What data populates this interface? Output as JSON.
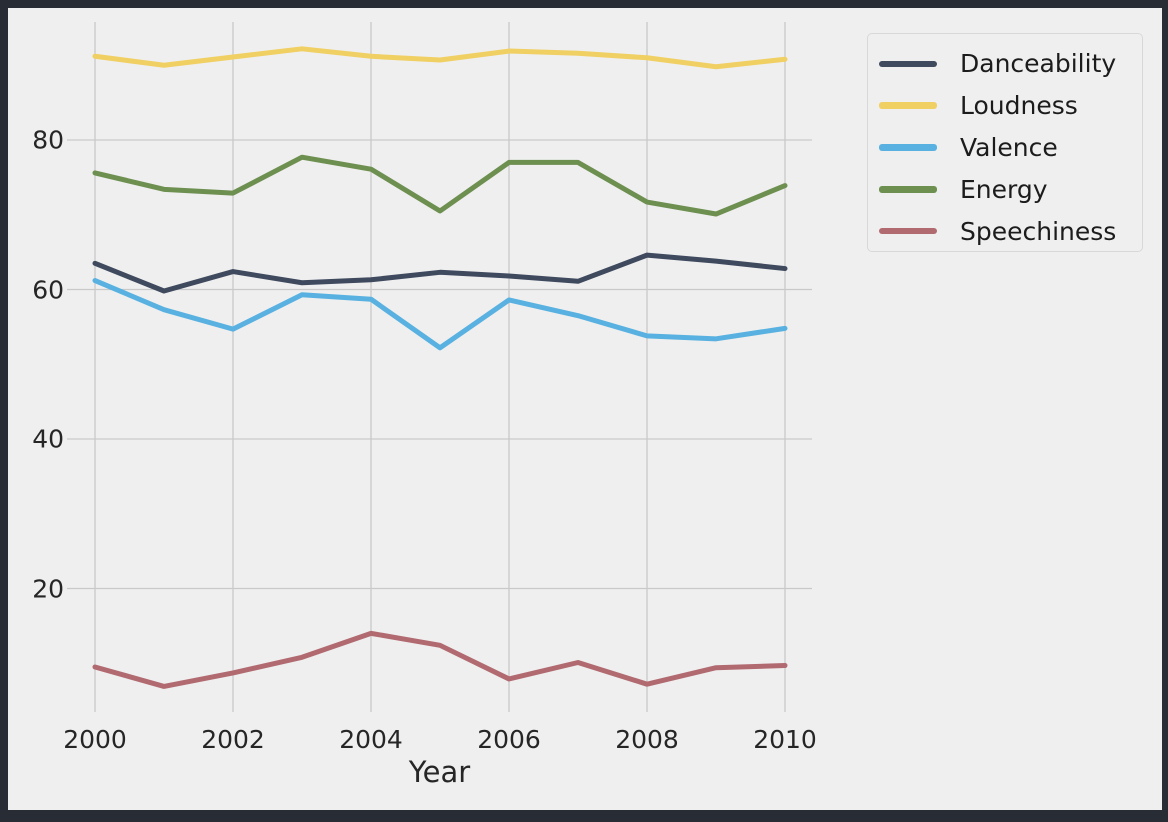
{
  "chart_data": {
    "type": "line",
    "title": "",
    "xlabel": "Year",
    "ylabel": "",
    "x": [
      2000,
      2001,
      2002,
      2003,
      2004,
      2005,
      2006,
      2007,
      2008,
      2009,
      2010
    ],
    "x_tick_labels": [
      "2000",
      "2002",
      "2004",
      "2006",
      "2008",
      "2010"
    ],
    "x_ticks": [
      2000,
      2002,
      2004,
      2006,
      2008,
      2010
    ],
    "y_tick_labels": [
      "20",
      "40",
      "60",
      "80"
    ],
    "y_ticks": [
      20,
      40,
      60,
      80
    ],
    "ylim": [
      4,
      96
    ],
    "grid": true,
    "legend_position": "upper right",
    "series": [
      {
        "name": "Danceability",
        "color": "#3f4a5f",
        "values": [
          63.5,
          59.8,
          62.4,
          60.9,
          61.3,
          62.3,
          61.8,
          61.1,
          64.6,
          63.8,
          62.8
        ]
      },
      {
        "name": "Loudness",
        "color": "#f0cf63",
        "values": [
          91.2,
          90.0,
          91.1,
          92.2,
          91.2,
          90.7,
          91.9,
          91.6,
          91.0,
          89.8,
          90.8
        ]
      },
      {
        "name": "Valence",
        "color": "#58b1e0",
        "values": [
          61.2,
          57.3,
          54.7,
          59.3,
          58.7,
          52.2,
          58.6,
          56.5,
          53.8,
          53.4,
          54.8
        ]
      },
      {
        "name": "Energy",
        "color": "#6d8f50",
        "values": [
          75.6,
          73.4,
          72.9,
          77.7,
          76.1,
          70.5,
          77.0,
          77.0,
          71.7,
          70.1,
          73.9
        ]
      },
      {
        "name": "Speechiness",
        "color": "#b16a70",
        "values": [
          9.5,
          6.9,
          8.7,
          10.8,
          14.0,
          12.4,
          7.9,
          10.1,
          7.2,
          9.4,
          9.7
        ]
      }
    ]
  },
  "legend": {
    "items": [
      {
        "label": "Danceability",
        "color": "#3f4a5f"
      },
      {
        "label": "Loudness",
        "color": "#f0cf63"
      },
      {
        "label": "Valence",
        "color": "#58b1e0"
      },
      {
        "label": "Energy",
        "color": "#6d8f50"
      },
      {
        "label": "Speechiness",
        "color": "#b16a70"
      }
    ]
  },
  "colors": {
    "frame": "#282c34",
    "background": "#efefef",
    "gridline": "#c9c9c9",
    "text": "#262626"
  }
}
